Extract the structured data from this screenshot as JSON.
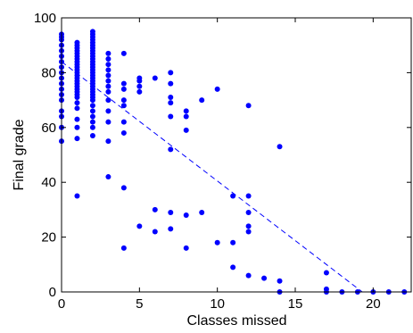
{
  "chart_data": {
    "type": "scatter",
    "title": "",
    "xlabel": "Classes missed",
    "ylabel": "Final grade",
    "xlim": [
      0,
      22.5
    ],
    "ylim": [
      0,
      100
    ],
    "xticks": [
      "0",
      "5",
      "10",
      "15",
      "20"
    ],
    "yticks": [
      "0",
      "20",
      "40",
      "60",
      "80",
      "100"
    ],
    "grid": false,
    "marker_color": "#0000ff",
    "points": [
      {
        "x": 0,
        "y": 94
      },
      {
        "x": 0,
        "y": 93
      },
      {
        "x": 0,
        "y": 92
      },
      {
        "x": 0,
        "y": 90
      },
      {
        "x": 0,
        "y": 88
      },
      {
        "x": 0,
        "y": 86
      },
      {
        "x": 0,
        "y": 84
      },
      {
        "x": 0,
        "y": 82
      },
      {
        "x": 0,
        "y": 80
      },
      {
        "x": 0,
        "y": 78
      },
      {
        "x": 0,
        "y": 76
      },
      {
        "x": 0,
        "y": 74
      },
      {
        "x": 0,
        "y": 72
      },
      {
        "x": 0,
        "y": 70
      },
      {
        "x": 0,
        "y": 66
      },
      {
        "x": 0,
        "y": 64
      },
      {
        "x": 0,
        "y": 60
      },
      {
        "x": 0,
        "y": 55
      },
      {
        "x": 1,
        "y": 91
      },
      {
        "x": 1,
        "y": 90
      },
      {
        "x": 1,
        "y": 89
      },
      {
        "x": 1,
        "y": 88
      },
      {
        "x": 1,
        "y": 87
      },
      {
        "x": 1,
        "y": 86
      },
      {
        "x": 1,
        "y": 85
      },
      {
        "x": 1,
        "y": 84
      },
      {
        "x": 1,
        "y": 83
      },
      {
        "x": 1,
        "y": 82
      },
      {
        "x": 1,
        "y": 81
      },
      {
        "x": 1,
        "y": 80
      },
      {
        "x": 1,
        "y": 79
      },
      {
        "x": 1,
        "y": 78
      },
      {
        "x": 1,
        "y": 77
      },
      {
        "x": 1,
        "y": 76
      },
      {
        "x": 1,
        "y": 75
      },
      {
        "x": 1,
        "y": 74
      },
      {
        "x": 1,
        "y": 73
      },
      {
        "x": 1,
        "y": 72
      },
      {
        "x": 1,
        "y": 71
      },
      {
        "x": 1,
        "y": 69
      },
      {
        "x": 1,
        "y": 67
      },
      {
        "x": 1,
        "y": 63
      },
      {
        "x": 1,
        "y": 60
      },
      {
        "x": 1,
        "y": 56
      },
      {
        "x": 1,
        "y": 35
      },
      {
        "x": 2,
        "y": 95
      },
      {
        "x": 2,
        "y": 94
      },
      {
        "x": 2,
        "y": 93
      },
      {
        "x": 2,
        "y": 92
      },
      {
        "x": 2,
        "y": 91
      },
      {
        "x": 2,
        "y": 90
      },
      {
        "x": 2,
        "y": 89
      },
      {
        "x": 2,
        "y": 88
      },
      {
        "x": 2,
        "y": 87
      },
      {
        "x": 2,
        "y": 86
      },
      {
        "x": 2,
        "y": 85
      },
      {
        "x": 2,
        "y": 84
      },
      {
        "x": 2,
        "y": 83
      },
      {
        "x": 2,
        "y": 82
      },
      {
        "x": 2,
        "y": 81
      },
      {
        "x": 2,
        "y": 80
      },
      {
        "x": 2,
        "y": 79
      },
      {
        "x": 2,
        "y": 78
      },
      {
        "x": 2,
        "y": 77
      },
      {
        "x": 2,
        "y": 76
      },
      {
        "x": 2,
        "y": 75
      },
      {
        "x": 2,
        "y": 74
      },
      {
        "x": 2,
        "y": 73
      },
      {
        "x": 2,
        "y": 72
      },
      {
        "x": 2,
        "y": 71
      },
      {
        "x": 2,
        "y": 70
      },
      {
        "x": 2,
        "y": 68
      },
      {
        "x": 2,
        "y": 66
      },
      {
        "x": 2,
        "y": 64
      },
      {
        "x": 2,
        "y": 62
      },
      {
        "x": 2,
        "y": 60
      },
      {
        "x": 2,
        "y": 57
      },
      {
        "x": 3,
        "y": 87
      },
      {
        "x": 3,
        "y": 85
      },
      {
        "x": 3,
        "y": 83
      },
      {
        "x": 3,
        "y": 81
      },
      {
        "x": 3,
        "y": 79
      },
      {
        "x": 3,
        "y": 77
      },
      {
        "x": 3,
        "y": 75
      },
      {
        "x": 3,
        "y": 73
      },
      {
        "x": 3,
        "y": 70
      },
      {
        "x": 3,
        "y": 66
      },
      {
        "x": 3,
        "y": 62
      },
      {
        "x": 3,
        "y": 55
      },
      {
        "x": 3,
        "y": 42
      },
      {
        "x": 4,
        "y": 87
      },
      {
        "x": 4,
        "y": 76
      },
      {
        "x": 4,
        "y": 74
      },
      {
        "x": 4,
        "y": 70
      },
      {
        "x": 4,
        "y": 68
      },
      {
        "x": 4,
        "y": 62
      },
      {
        "x": 4,
        "y": 58
      },
      {
        "x": 4,
        "y": 38
      },
      {
        "x": 4,
        "y": 16
      },
      {
        "x": 5,
        "y": 78
      },
      {
        "x": 5,
        "y": 77
      },
      {
        "x": 5,
        "y": 75
      },
      {
        "x": 5,
        "y": 73
      },
      {
        "x": 5,
        "y": 24
      },
      {
        "x": 6,
        "y": 78
      },
      {
        "x": 6,
        "y": 30
      },
      {
        "x": 6,
        "y": 22
      },
      {
        "x": 7,
        "y": 80
      },
      {
        "x": 7,
        "y": 76
      },
      {
        "x": 7,
        "y": 71
      },
      {
        "x": 7,
        "y": 69
      },
      {
        "x": 7,
        "y": 64
      },
      {
        "x": 7,
        "y": 52
      },
      {
        "x": 7,
        "y": 29
      },
      {
        "x": 7,
        "y": 23
      },
      {
        "x": 8,
        "y": 66
      },
      {
        "x": 8,
        "y": 64
      },
      {
        "x": 8,
        "y": 59
      },
      {
        "x": 8,
        "y": 28
      },
      {
        "x": 8,
        "y": 16
      },
      {
        "x": 9,
        "y": 70
      },
      {
        "x": 9,
        "y": 29
      },
      {
        "x": 10,
        "y": 74
      },
      {
        "x": 10,
        "y": 18
      },
      {
        "x": 11,
        "y": 35
      },
      {
        "x": 11,
        "y": 18
      },
      {
        "x": 11,
        "y": 9
      },
      {
        "x": 12,
        "y": 68
      },
      {
        "x": 12,
        "y": 35
      },
      {
        "x": 12,
        "y": 29
      },
      {
        "x": 12,
        "y": 24
      },
      {
        "x": 12,
        "y": 22
      },
      {
        "x": 12,
        "y": 6
      },
      {
        "x": 13,
        "y": 5
      },
      {
        "x": 14,
        "y": 53
      },
      {
        "x": 14,
        "y": 4
      },
      {
        "x": 14,
        "y": 0
      },
      {
        "x": 17,
        "y": 7
      },
      {
        "x": 17,
        "y": 1
      },
      {
        "x": 17,
        "y": 0
      },
      {
        "x": 18,
        "y": 0
      },
      {
        "x": 19,
        "y": 0
      },
      {
        "x": 20,
        "y": 0
      },
      {
        "x": 21,
        "y": 0
      },
      {
        "x": 22,
        "y": 0
      }
    ],
    "trend_line": {
      "style": "dashed",
      "x": [
        0,
        19.3
      ],
      "y": [
        84,
        0
      ]
    }
  }
}
